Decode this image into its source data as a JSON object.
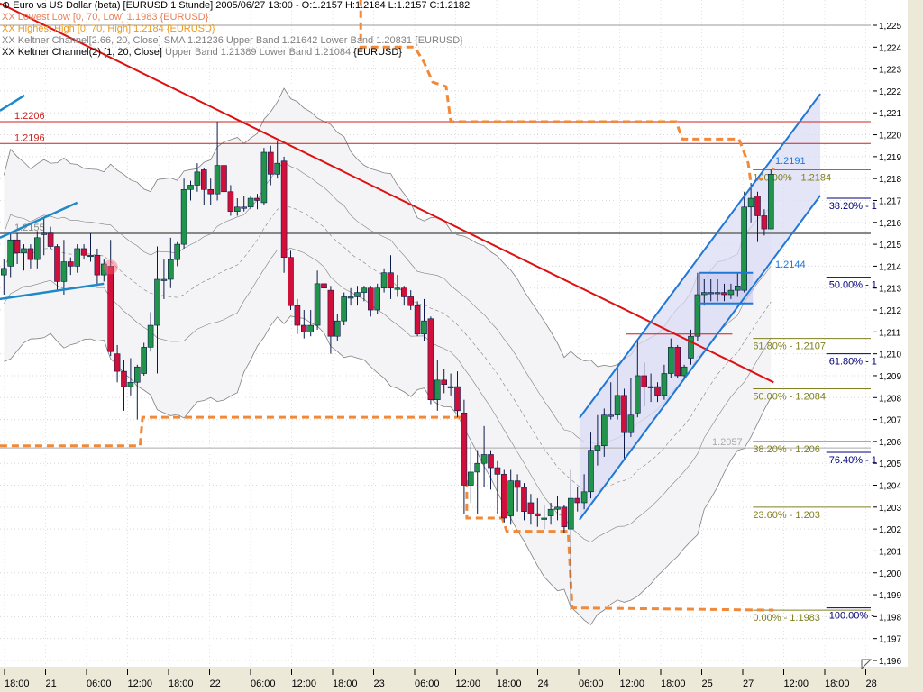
{
  "legend": {
    "title": "Euro vs US Dollar (beta) [EURUSD  1 Stunde] 2005/06/27 13:00 - O:1.2157 H:1.2184 L:1.2157 C:1.2182",
    "lowest_low": "XX Lowest Low [0, 70, Low] 1.1983 {EURUSD}",
    "highest_high": "XX Highest High [0, 70, High] 1.2184 {EURUSD}",
    "keltner1": "XX Keltner Channel[2.66, 20, Close] SMA 1.21236 Upper Band 1.21642 Lower Band 1.20831 {EURUSD}",
    "keltner2_name": "XX Keltner Channel(2) [1, 20, Close]",
    "keltner2_values": "Upper Band 1.21389 Lower Band 1.21084",
    "keltner2_symbol": "{EURUSD}"
  },
  "colors": {
    "up": "#22934a",
    "down": "#d0103a",
    "outline": "#0a1a4a",
    "trendline": "#dd1111",
    "channel": "#1f78d8",
    "orange": "#f08a3a",
    "fib1": "#808020",
    "fib2": "#00007a",
    "band": "#808080",
    "band_fill": "#f4f4f6"
  },
  "chart_data": {
    "type": "candlestick",
    "symbol": "EURUSD",
    "interval": "1 Stunde",
    "ylim": [
      1.196,
      1.225
    ],
    "y_ticks": [
      "1,225",
      "1,224",
      "1,223",
      "1,222",
      "1,221",
      "1,220",
      "1,219",
      "1,218",
      "1,217",
      "1,216",
      "1,215",
      "1,214",
      "1,213",
      "1,212",
      "1,211",
      "1,210",
      "1,209",
      "1,208",
      "1,207",
      "1,206",
      "1,205",
      "1,204",
      "1,203",
      "1,202",
      "1,201",
      "1,200",
      "1,199",
      "1,198",
      "1,197",
      "1,196"
    ],
    "x_ticks": [
      "18:00",
      "21",
      "06:00",
      "12:00",
      "18:00",
      "22",
      "06:00",
      "12:00",
      "18:00",
      "23",
      "06:00",
      "12:00",
      "18:00",
      "24",
      "06:00",
      "12:00",
      "18:00",
      "25",
      "27",
      "12:00",
      "18:00",
      "28"
    ],
    "grid": true,
    "ohlc": [
      [
        1.2136,
        1.2143,
        1.2127,
        1.2139
      ],
      [
        1.214,
        1.2155,
        1.2135,
        1.2152
      ],
      [
        1.2152,
        1.2155,
        1.2141,
        1.2146
      ],
      [
        1.2146,
        1.215,
        1.2138,
        1.2148
      ],
      [
        1.2148,
        1.215,
        1.2139,
        1.2143
      ],
      [
        1.2143,
        1.2156,
        1.2139,
        1.2153
      ],
      [
        1.2155,
        1.2162,
        1.2145,
        1.2155
      ],
      [
        1.2155,
        1.2158,
        1.2148,
        1.2149
      ],
      [
        1.2149,
        1.215,
        1.2129,
        1.2133
      ],
      [
        1.2133,
        1.2152,
        1.2127,
        1.2142
      ],
      [
        1.2142,
        1.2144,
        1.2136,
        1.214
      ],
      [
        1.214,
        1.215,
        1.2137,
        1.2148
      ],
      [
        1.2148,
        1.215,
        1.2143,
        1.2145
      ],
      [
        1.2145,
        1.2155,
        1.2142,
        1.2145
      ],
      [
        1.2145,
        1.2148,
        1.2131,
        1.2136
      ],
      [
        1.2136,
        1.2143,
        1.2133,
        1.2141
      ],
      [
        1.214,
        1.2152,
        1.2099,
        1.2101
      ],
      [
        1.21,
        1.2104,
        1.2087,
        1.2092
      ],
      [
        1.2092,
        1.2097,
        1.2074,
        1.2085
      ],
      [
        1.2085,
        1.2098,
        1.2081,
        1.2087
      ],
      [
        1.2087,
        1.2095,
        1.207,
        1.2094
      ],
      [
        1.2091,
        1.2105,
        1.209,
        1.2103
      ],
      [
        1.2103,
        1.2119,
        1.2101,
        1.2113
      ],
      [
        1.2113,
        1.2149,
        1.2091,
        1.2134
      ],
      [
        1.2134,
        1.2143,
        1.2125,
        1.2134
      ],
      [
        1.2134,
        1.2153,
        1.213,
        1.2143
      ],
      [
        1.2143,
        1.2151,
        1.214,
        1.215
      ],
      [
        1.215,
        1.218,
        1.2148,
        1.2175
      ],
      [
        1.2175,
        1.2179,
        1.217,
        1.2177
      ],
      [
        1.2177,
        1.2187,
        1.2174,
        1.2183
      ],
      [
        1.2184,
        1.2185,
        1.2168,
        1.2175
      ],
      [
        1.2175,
        1.218,
        1.2168,
        1.2173
      ],
      [
        1.2173,
        1.2206,
        1.217,
        1.2186
      ],
      [
        1.2186,
        1.2189,
        1.217,
        1.2174
      ],
      [
        1.2174,
        1.2177,
        1.2163,
        1.2165
      ],
      [
        1.2165,
        1.2171,
        1.2163,
        1.2167
      ],
      [
        1.2167,
        1.2172,
        1.2165,
        1.2167
      ],
      [
        1.2167,
        1.2172,
        1.2166,
        1.2171
      ],
      [
        1.2171,
        1.2173,
        1.2166,
        1.217
      ],
      [
        1.2169,
        1.2194,
        1.2168,
        1.2192
      ],
      [
        1.2192,
        1.2195,
        1.2177,
        1.2182
      ],
      [
        1.2182,
        1.2197,
        1.218,
        1.2187
      ],
      [
        1.2188,
        1.219,
        1.2137,
        1.2144
      ],
      [
        1.2144,
        1.2147,
        1.212,
        1.2122
      ],
      [
        1.2122,
        1.2125,
        1.2109,
        1.2113
      ],
      [
        1.2113,
        1.212,
        1.2107,
        1.211
      ],
      [
        1.211,
        1.212,
        1.2108,
        1.2113
      ],
      [
        1.2113,
        1.2138,
        1.2111,
        1.2132
      ],
      [
        1.2132,
        1.2142,
        1.2127,
        1.213
      ],
      [
        1.2129,
        1.2131,
        1.21,
        1.2108
      ],
      [
        1.2108,
        1.2118,
        1.2106,
        1.2115
      ],
      [
        1.2115,
        1.2128,
        1.2113,
        1.2126
      ],
      [
        1.2126,
        1.213,
        1.2122,
        1.2126
      ],
      [
        1.2126,
        1.2131,
        1.2122,
        1.2128
      ],
      [
        1.2128,
        1.2131,
        1.2124,
        1.213
      ],
      [
        1.213,
        1.2131,
        1.2117,
        1.212
      ],
      [
        1.212,
        1.2132,
        1.2118,
        1.213
      ],
      [
        1.213,
        1.2139,
        1.2128,
        1.2137
      ],
      [
        1.2137,
        1.2145,
        1.2125,
        1.213
      ],
      [
        1.213,
        1.2136,
        1.2126,
        1.213
      ],
      [
        1.213,
        1.2131,
        1.2122,
        1.2126
      ],
      [
        1.2126,
        1.2129,
        1.212,
        1.2122
      ],
      [
        1.2122,
        1.2124,
        1.2108,
        1.2109
      ],
      [
        1.2109,
        1.2125,
        1.2106,
        1.2115
      ],
      [
        1.2116,
        1.2117,
        1.2077,
        1.2079
      ],
      [
        1.2079,
        1.2097,
        1.2074,
        1.2088
      ],
      [
        1.2088,
        1.2093,
        1.2082,
        1.2086
      ],
      [
        1.2085,
        1.2091,
        1.2081,
        1.2085
      ],
      [
        1.2085,
        1.2092,
        1.2071,
        1.2074
      ],
      [
        1.2073,
        1.2079,
        1.2027,
        1.204
      ],
      [
        1.204,
        1.2059,
        1.2032,
        1.2046
      ],
      [
        1.2046,
        1.2056,
        1.2027,
        1.205
      ],
      [
        1.205,
        1.2067,
        1.2039,
        1.2054
      ],
      [
        1.2054,
        1.2056,
        1.2038,
        1.2048
      ],
      [
        1.2048,
        1.2051,
        1.2027,
        1.2045
      ],
      [
        1.2045,
        1.2047,
        1.2023,
        1.2025
      ],
      [
        1.2026,
        1.2047,
        1.2022,
        1.2042
      ],
      [
        1.2042,
        1.2045,
        1.2028,
        1.2039
      ],
      [
        1.2039,
        1.2041,
        1.2024,
        1.2028
      ],
      [
        1.2032,
        1.2036,
        1.2022,
        1.2027
      ],
      [
        1.2027,
        1.2034,
        1.2021,
        1.2026
      ],
      [
        1.2025,
        1.2031,
        1.202,
        1.2025
      ],
      [
        1.2026,
        1.2032,
        1.2022,
        1.2029
      ],
      [
        1.2029,
        1.2035,
        1.2024,
        1.203
      ],
      [
        1.203,
        1.2031,
        1.2018,
        1.2021
      ],
      [
        1.202,
        1.2047,
        1.1983,
        1.2034
      ],
      [
        1.2034,
        1.2039,
        1.2028,
        1.2032
      ],
      [
        1.2032,
        1.2045,
        1.2029,
        1.2037
      ],
      [
        1.2037,
        1.2064,
        1.2034,
        1.2056
      ],
      [
        1.2056,
        1.2072,
        1.2049,
        1.2058
      ],
      [
        1.2058,
        1.2075,
        1.2053,
        1.2072
      ],
      [
        1.2072,
        1.2087,
        1.207,
        1.2072
      ],
      [
        1.2072,
        1.2094,
        1.207,
        1.2081
      ],
      [
        1.2081,
        1.2084,
        1.2052,
        1.2064
      ],
      [
        1.2064,
        1.2089,
        1.2062,
        1.2072
      ],
      [
        1.2073,
        1.2106,
        1.2071,
        1.209
      ],
      [
        1.209,
        1.2096,
        1.2076,
        1.2085
      ],
      [
        1.2085,
        1.2091,
        1.2078,
        1.2085
      ],
      [
        1.2085,
        1.2087,
        1.2078,
        1.2081
      ],
      [
        1.2081,
        1.2095,
        1.2079,
        1.2091
      ],
      [
        1.2091,
        1.2107,
        1.2089,
        1.2103
      ],
      [
        1.2103,
        1.2104,
        1.2089,
        1.209
      ],
      [
        1.209,
        1.2095,
        1.2089,
        1.2094
      ],
      [
        1.2098,
        1.2111,
        1.2095,
        1.2108
      ],
      [
        1.2108,
        1.2137,
        1.2106,
        1.2127
      ],
      [
        1.2127,
        1.2134,
        1.2122,
        1.2128
      ],
      [
        1.2128,
        1.2134,
        1.2124,
        1.2128
      ],
      [
        1.2128,
        1.2134,
        1.2124,
        1.2128
      ],
      [
        1.2128,
        1.2132,
        1.2124,
        1.2127
      ],
      [
        1.2127,
        1.2132,
        1.2125,
        1.2129
      ],
      [
        1.2129,
        1.2137,
        1.2126,
        1.2131
      ],
      [
        1.2129,
        1.2174,
        1.2128,
        1.2167
      ],
      [
        1.2167,
        1.2178,
        1.216,
        1.2171
      ],
      [
        1.2172,
        1.2174,
        1.2151,
        1.2163
      ],
      [
        1.2163,
        1.2166,
        1.2154,
        1.2157
      ],
      [
        1.2157,
        1.2184,
        1.2157,
        1.2182
      ]
    ],
    "keltner_outer": {
      "period": 20,
      "multiplier": 2.66
    },
    "keltner_inner": {
      "period": 20,
      "multiplier": 1
    },
    "horizontal_lines": [
      {
        "price": 1.2206,
        "label": "1.2206",
        "color": "#cc2222"
      },
      {
        "price": 1.2196,
        "label": "1.2196",
        "color": "#cc2222"
      },
      {
        "price": 1.2155,
        "label": "1.2155",
        "color": "#888888"
      },
      {
        "price": 1.2057,
        "label": "1.2057",
        "color": "#aaaaaa"
      },
      {
        "price": 1.225,
        "label": "",
        "color": "#999999"
      }
    ],
    "trendline": [
      [
        -0.6,
        1.226
      ],
      [
        115.4,
        1.2087
      ]
    ],
    "short_line": [
      [
        93.3,
        1.2109
      ],
      [
        109.2,
        1.2109
      ]
    ],
    "channel_upper": [
      [
        86.3,
        1.20707
      ],
      [
        122.4,
        1.22187
      ]
    ],
    "channel_lower": [
      [
        86.3,
        1.20242
      ],
      [
        122.4,
        1.21723
      ]
    ],
    "channel_labels": [
      "1.2191",
      "1.2144"
    ],
    "box": {
      "i1": 104.3,
      "i2": 112.3,
      "p1": 1.2137,
      "p2": 1.2123
    },
    "left_lines": [
      [
        [
          -0.6,
          1.2211
        ],
        [
          3.1,
          1.2218
        ]
      ],
      [
        [
          -0.6,
          1.2153
        ],
        [
          11.0,
          1.2169
        ]
      ],
      [
        [
          -0.6,
          1.2125
        ],
        [
          15.0,
          1.2132
        ]
      ]
    ],
    "highest_high": [
      [
        53.5,
        1.2262
      ],
      [
        53.5,
        1.224
      ],
      [
        61.6,
        1.224
      ],
      [
        63,
        1.2233
      ],
      [
        64.3,
        1.2224
      ],
      [
        66.3,
        1.2222
      ],
      [
        67,
        1.2206
      ],
      [
        100.8,
        1.2206
      ],
      [
        101.7,
        1.2198
      ],
      [
        110.2,
        1.2198
      ],
      [
        111.6,
        1.2187
      ],
      [
        111.9,
        1.218
      ],
      [
        115,
        1.218
      ],
      [
        115.4,
        1.2185
      ]
    ],
    "lowest_low": [
      [
        -0.6,
        1.2058
      ],
      [
        20.4,
        1.2058
      ],
      [
        20.8,
        1.2071
      ],
      [
        68.6,
        1.2071
      ],
      [
        69.4,
        1.2039
      ],
      [
        69.4,
        1.2025
      ],
      [
        74.7,
        1.2025
      ],
      [
        75.4,
        1.2019
      ],
      [
        84.6,
        1.2019
      ],
      [
        85.2,
        1.1984
      ],
      [
        115.4,
        1.1983
      ]
    ],
    "fib1": {
      "start": 112.3,
      "levels": [
        {
          "price": 1.2184,
          "label": "100.00% - 1.2184"
        },
        {
          "price": 1.2107,
          "label": "61.80% - 1.2107"
        },
        {
          "price": 1.2084,
          "label": "50.00% - 1.2084"
        },
        {
          "price": 1.206,
          "label": "38.20% - 1.206"
        },
        {
          "price": 1.203,
          "label": "23.60% - 1.203"
        },
        {
          "price": 1.1983,
          "label": "0.00% - 1.1983"
        }
      ]
    },
    "fib2": {
      "start": 123.3,
      "levels": [
        {
          "price": 1.2171,
          "label": "38.20% - 1"
        },
        {
          "price": 1.2135,
          "label": "50.00% - 1"
        },
        {
          "price": 1.21,
          "label": "61.80% - 1"
        },
        {
          "price": 1.2055,
          "label": "76.40% - 1"
        },
        {
          "price": 1.1984,
          "label": "100.00% -"
        }
      ]
    },
    "marker": {
      "index": 16,
      "price": 1.214
    }
  }
}
